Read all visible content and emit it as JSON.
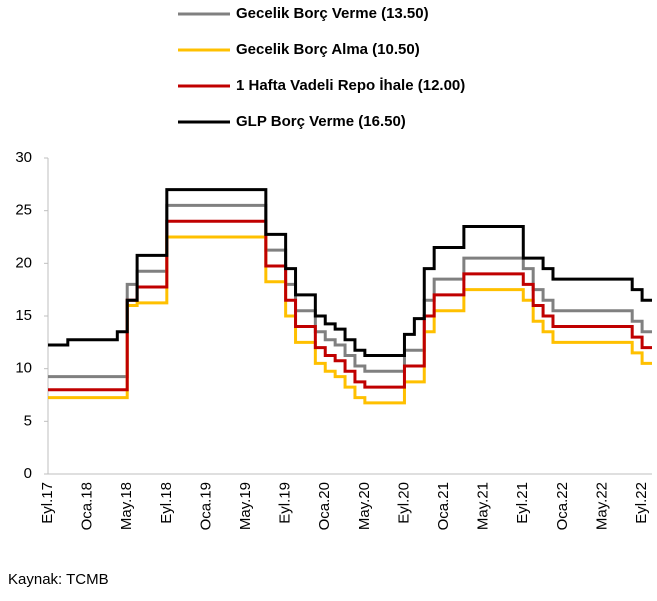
{
  "chart_data": {
    "type": "step-line",
    "categories": [
      "Eyl.17",
      null,
      null,
      null,
      "Oca.18",
      null,
      null,
      null,
      "May.18",
      null,
      null,
      null,
      "Eyl.18",
      null,
      null,
      null,
      "Oca.19",
      null,
      null,
      null,
      "May.19",
      null,
      null,
      null,
      "Eyl.19",
      null,
      null,
      null,
      "Oca.20",
      null,
      null,
      null,
      "May.20",
      null,
      null,
      null,
      "Eyl.20",
      null,
      null,
      null,
      "Oca.21",
      null,
      null,
      null,
      "May.21",
      null,
      null,
      null,
      "Eyl.21",
      null,
      null,
      null,
      "Oca.22",
      null,
      null,
      null,
      "May.22",
      null,
      null,
      null,
      "Eyl.22"
    ],
    "series": [
      {
        "name": "Gecelik Borç Verme (13.50)",
        "color": "#808080",
        "values": [
          9.25,
          9.25,
          9.25,
          9.25,
          9.25,
          9.25,
          9.25,
          9.25,
          18,
          19.25,
          19.25,
          19.25,
          25.5,
          25.5,
          25.5,
          25.5,
          25.5,
          25.5,
          25.5,
          25.5,
          25.5,
          25.5,
          21.25,
          21.25,
          18,
          15.5,
          15.5,
          13.5,
          12.75,
          12.25,
          11.25,
          10.25,
          9.75,
          9.75,
          9.75,
          9.75,
          11.75,
          11.75,
          16.5,
          18.5,
          18.5,
          18.5,
          20.5,
          20.5,
          20.5,
          20.5,
          20.5,
          20.5,
          19.5,
          17.5,
          16.5,
          15.5,
          15.5,
          15.5,
          15.5,
          15.5,
          15.5,
          15.5,
          15.5,
          14.5,
          13.5
        ]
      },
      {
        "name": "Gecelik Borç Alma (10.50)",
        "color": "#ffc000",
        "values": [
          7.25,
          7.25,
          7.25,
          7.25,
          7.25,
          7.25,
          7.25,
          7.25,
          16,
          16.25,
          16.25,
          16.25,
          22.5,
          22.5,
          22.5,
          22.5,
          22.5,
          22.5,
          22.5,
          22.5,
          22.5,
          22.5,
          18.25,
          18.25,
          15,
          12.5,
          12.5,
          10.5,
          9.75,
          9.25,
          8.25,
          7.25,
          6.75,
          6.75,
          6.75,
          6.75,
          8.75,
          8.75,
          13.5,
          15.5,
          15.5,
          15.5,
          17.5,
          17.5,
          17.5,
          17.5,
          17.5,
          17.5,
          16.5,
          14.5,
          13.5,
          12.5,
          12.5,
          12.5,
          12.5,
          12.5,
          12.5,
          12.5,
          12.5,
          11.5,
          10.5
        ]
      },
      {
        "name": "1 Hafta Vadeli Repo İhale (12.00)",
        "color": "#c00000",
        "values": [
          8,
          8,
          8,
          8,
          8,
          8,
          8,
          8,
          16.5,
          17.75,
          17.75,
          17.75,
          24,
          24,
          24,
          24,
          24,
          24,
          24,
          24,
          24,
          24,
          19.75,
          19.75,
          16.5,
          14,
          14,
          12,
          11.25,
          10.75,
          9.75,
          8.75,
          8.25,
          8.25,
          8.25,
          8.25,
          10.25,
          10.25,
          15,
          17,
          17,
          17,
          19,
          19,
          19,
          19,
          19,
          19,
          18,
          16,
          15,
          14,
          14,
          14,
          14,
          14,
          14,
          14,
          14,
          13,
          12
        ]
      },
      {
        "name": "GLP Borç Verme (16.50)",
        "color": "#000000",
        "values": [
          12.25,
          12.25,
          12.75,
          12.75,
          12.75,
          12.75,
          12.75,
          13.5,
          16.5,
          20.75,
          20.75,
          20.75,
          27,
          27,
          27,
          27,
          27,
          27,
          27,
          27,
          27,
          27,
          22.75,
          22.75,
          19.5,
          17,
          17,
          15,
          14.25,
          13.75,
          12.75,
          11.75,
          11.25,
          11.25,
          11.25,
          11.25,
          13.25,
          14.75,
          19.5,
          21.5,
          21.5,
          21.5,
          23.5,
          23.5,
          23.5,
          23.5,
          23.5,
          23.5,
          20.5,
          20.5,
          19.5,
          18.5,
          18.5,
          18.5,
          18.5,
          18.5,
          18.5,
          18.5,
          18.5,
          17.5,
          16.5
        ]
      }
    ],
    "ylim": [
      0,
      30
    ],
    "yticks": [
      0,
      5,
      10,
      15,
      20,
      25,
      30
    ],
    "grid": false,
    "source": "Kaynak: TCMB"
  }
}
